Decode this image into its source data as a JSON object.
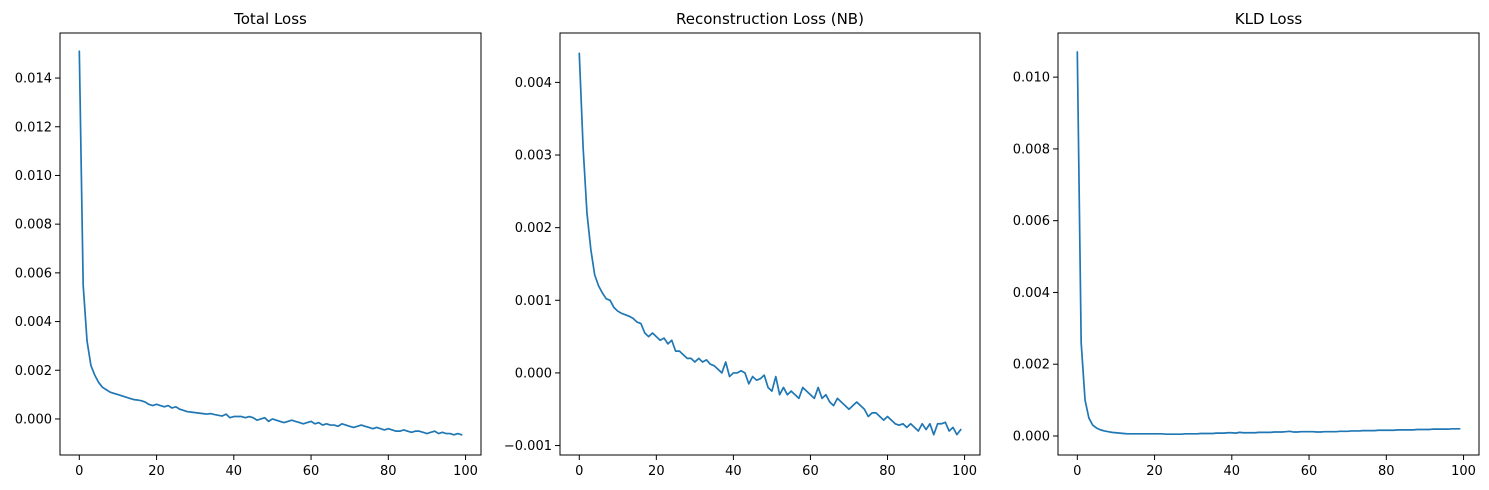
{
  "chart_data": [
    {
      "type": "line",
      "title": "Total Loss",
      "xlabel": "",
      "ylabel": "",
      "xlim": [
        -5,
        104
      ],
      "ylim": [
        -0.00148,
        0.01585
      ],
      "xticks": [
        0,
        20,
        40,
        60,
        80,
        100
      ],
      "xtick_labels": [
        "0",
        "20",
        "40",
        "60",
        "80",
        "100"
      ],
      "yticks": [
        0.0,
        0.002,
        0.004,
        0.006,
        0.008,
        0.01,
        0.012,
        0.014
      ],
      "ytick_labels": [
        "0.000",
        "0.002",
        "0.004",
        "0.006",
        "0.008",
        "0.010",
        "0.012",
        "0.014"
      ],
      "grid": false,
      "legend": "none",
      "series": [
        {
          "color": "#1f77b4",
          "x": [
            0,
            1,
            2,
            3,
            4,
            5,
            6,
            7,
            8,
            9,
            10,
            11,
            12,
            13,
            14,
            15,
            16,
            17,
            18,
            19,
            20,
            21,
            22,
            23,
            24,
            25,
            26,
            27,
            28,
            29,
            30,
            31,
            32,
            33,
            34,
            35,
            36,
            37,
            38,
            39,
            40,
            41,
            42,
            43,
            44,
            45,
            46,
            47,
            48,
            49,
            50,
            51,
            52,
            53,
            54,
            55,
            56,
            57,
            58,
            59,
            60,
            61,
            62,
            63,
            64,
            65,
            66,
            67,
            68,
            69,
            70,
            71,
            72,
            73,
            74,
            75,
            76,
            77,
            78,
            79,
            80,
            81,
            82,
            83,
            84,
            85,
            86,
            87,
            88,
            89,
            90,
            91,
            92,
            93,
            94,
            95,
            96,
            97,
            98,
            99
          ],
          "values": [
            0.0151,
            0.0055,
            0.0032,
            0.0022,
            0.0018,
            0.0015,
            0.0013,
            0.0012,
            0.0011,
            0.00105,
            0.001,
            0.00095,
            0.0009,
            0.00085,
            0.0008,
            0.00078,
            0.00075,
            0.0007,
            0.0006,
            0.00055,
            0.0006,
            0.00055,
            0.0005,
            0.00055,
            0.00045,
            0.0005,
            0.0004,
            0.00035,
            0.0003,
            0.00028,
            0.00026,
            0.00024,
            0.00022,
            0.0002,
            0.00022,
            0.00018,
            0.00015,
            0.00012,
            0.0002,
            5e-05,
            0.0001,
            0.0001,
            0.0001,
            5e-05,
            0.0001,
            5e-05,
            -5e-05,
            0.0,
            5e-05,
            -0.0001,
            0.0,
            -5e-05,
            -0.0001,
            -0.00015,
            -0.0001,
            -5e-05,
            -0.0001,
            -0.00015,
            -0.0002,
            -0.00015,
            -0.0001,
            -0.0002,
            -0.00015,
            -0.00025,
            -0.0002,
            -0.00025,
            -0.00025,
            -0.0003,
            -0.0002,
            -0.00025,
            -0.0003,
            -0.00035,
            -0.0003,
            -0.00025,
            -0.0003,
            -0.00035,
            -0.0004,
            -0.00035,
            -0.0004,
            -0.00045,
            -0.0004,
            -0.00045,
            -0.0005,
            -0.0005,
            -0.00045,
            -0.0005,
            -0.00055,
            -0.0005,
            -0.0005,
            -0.00055,
            -0.0006,
            -0.00055,
            -0.0005,
            -0.0006,
            -0.00055,
            -0.0006,
            -0.0006,
            -0.00065,
            -0.0006,
            -0.00065
          ]
        }
      ]
    },
    {
      "type": "line",
      "title": "Reconstruction Loss (NB)",
      "xlabel": "",
      "ylabel": "",
      "xlim": [
        -5,
        104
      ],
      "ylim": [
        -0.00113,
        0.00468
      ],
      "xticks": [
        0,
        20,
        40,
        60,
        80,
        100
      ],
      "xtick_labels": [
        "0",
        "20",
        "40",
        "60",
        "80",
        "100"
      ],
      "yticks": [
        -0.001,
        0.0,
        0.001,
        0.002,
        0.003,
        0.004
      ],
      "ytick_labels": [
        "−0.001",
        "0.000",
        "0.001",
        "0.002",
        "0.003",
        "0.004"
      ],
      "grid": false,
      "legend": "none",
      "series": [
        {
          "color": "#1f77b4",
          "x": [
            0,
            1,
            2,
            3,
            4,
            5,
            6,
            7,
            8,
            9,
            10,
            11,
            12,
            13,
            14,
            15,
            16,
            17,
            18,
            19,
            20,
            21,
            22,
            23,
            24,
            25,
            26,
            27,
            28,
            29,
            30,
            31,
            32,
            33,
            34,
            35,
            36,
            37,
            38,
            39,
            40,
            41,
            42,
            43,
            44,
            45,
            46,
            47,
            48,
            49,
            50,
            51,
            52,
            53,
            54,
            55,
            56,
            57,
            58,
            59,
            60,
            61,
            62,
            63,
            64,
            65,
            66,
            67,
            68,
            69,
            70,
            71,
            72,
            73,
            74,
            75,
            76,
            77,
            78,
            79,
            80,
            81,
            82,
            83,
            84,
            85,
            86,
            87,
            88,
            89,
            90,
            91,
            92,
            93,
            94,
            95,
            96,
            97,
            98,
            99
          ],
          "values": [
            0.0044,
            0.0031,
            0.0022,
            0.0017,
            0.00135,
            0.0012,
            0.0011,
            0.00102,
            0.001,
            0.0009,
            0.00085,
            0.00082,
            0.0008,
            0.00078,
            0.00075,
            0.0007,
            0.00068,
            0.00055,
            0.0005,
            0.00055,
            0.0005,
            0.00045,
            0.00048,
            0.0004,
            0.00045,
            0.0003,
            0.0003,
            0.00025,
            0.0002,
            0.0002,
            0.00015,
            0.0002,
            0.00015,
            0.00018,
            0.00012,
            0.0001,
            5e-05,
            0.0,
            0.00015,
            -5e-05,
            0.0,
            0.0,
            3e-05,
            0.0,
            -0.00015,
            -5e-05,
            -0.0001,
            -8e-05,
            -3e-05,
            -0.0002,
            -0.00025,
            -5e-05,
            -0.0003,
            -0.0002,
            -0.0003,
            -0.00025,
            -0.0003,
            -0.00035,
            -0.0002,
            -0.00025,
            -0.0003,
            -0.00035,
            -0.0002,
            -0.00035,
            -0.0003,
            -0.0004,
            -0.00045,
            -0.00035,
            -0.0004,
            -0.00045,
            -0.0005,
            -0.00045,
            -0.0004,
            -0.00045,
            -0.0005,
            -0.0006,
            -0.00055,
            -0.00055,
            -0.0006,
            -0.00065,
            -0.0006,
            -0.00065,
            -0.0007,
            -0.00072,
            -0.0007,
            -0.00075,
            -0.0007,
            -0.00075,
            -0.0008,
            -0.0007,
            -0.00078,
            -0.0007,
            -0.00085,
            -0.0007,
            -0.0007,
            -0.00068,
            -0.0008,
            -0.00075,
            -0.00085,
            -0.00078
          ]
        }
      ]
    },
    {
      "type": "line",
      "title": "KLD Loss",
      "xlabel": "",
      "ylabel": "",
      "xlim": [
        -5,
        104
      ],
      "ylim": [
        -0.00053,
        0.01123
      ],
      "xticks": [
        0,
        20,
        40,
        60,
        80,
        100
      ],
      "xtick_labels": [
        "0",
        "20",
        "40",
        "60",
        "80",
        "100"
      ],
      "yticks": [
        0.0,
        0.002,
        0.004,
        0.006,
        0.008,
        0.01
      ],
      "ytick_labels": [
        "0.000",
        "0.002",
        "0.004",
        "0.006",
        "0.008",
        "0.010"
      ],
      "grid": false,
      "legend": "none",
      "series": [
        {
          "color": "#1f77b4",
          "x": [
            0,
            1,
            2,
            3,
            4,
            5,
            6,
            7,
            8,
            9,
            10,
            11,
            12,
            13,
            14,
            15,
            16,
            17,
            18,
            19,
            20,
            21,
            22,
            23,
            24,
            25,
            26,
            27,
            28,
            29,
            30,
            31,
            32,
            33,
            34,
            35,
            36,
            37,
            38,
            39,
            40,
            41,
            42,
            43,
            44,
            45,
            46,
            47,
            48,
            49,
            50,
            51,
            52,
            53,
            54,
            55,
            56,
            57,
            58,
            59,
            60,
            61,
            62,
            63,
            64,
            65,
            66,
            67,
            68,
            69,
            70,
            71,
            72,
            73,
            74,
            75,
            76,
            77,
            78,
            79,
            80,
            81,
            82,
            83,
            84,
            85,
            86,
            87,
            88,
            89,
            90,
            91,
            92,
            93,
            94,
            95,
            96,
            97,
            98,
            99
          ],
          "values": [
            0.0107,
            0.0026,
            0.001,
            0.0005,
            0.0003,
            0.00022,
            0.00017,
            0.00014,
            0.00012,
            0.0001,
            9e-05,
            8e-05,
            7e-05,
            6e-05,
            6e-05,
            6e-05,
            6e-05,
            6e-05,
            6e-05,
            6e-05,
            6e-05,
            6e-05,
            6e-05,
            5e-05,
            5e-05,
            5e-05,
            5e-05,
            5e-05,
            6e-05,
            6e-05,
            6e-05,
            6e-05,
            7e-05,
            7e-05,
            7e-05,
            7e-05,
            8e-05,
            8e-05,
            8e-05,
            9e-05,
            9e-05,
            8e-05,
            0.0001,
            9e-05,
            9e-05,
            9e-05,
            9e-05,
            0.0001,
            0.0001,
            0.0001,
            0.0001,
            0.00011,
            0.00011,
            0.00011,
            0.00012,
            0.00013,
            0.00011,
            0.00011,
            0.00012,
            0.00012,
            0.00012,
            0.00012,
            0.00011,
            0.00011,
            0.00012,
            0.00012,
            0.00012,
            0.00012,
            0.00013,
            0.00013,
            0.00013,
            0.00014,
            0.00014,
            0.00014,
            0.00015,
            0.00015,
            0.00015,
            0.00015,
            0.00016,
            0.00016,
            0.00016,
            0.00016,
            0.00016,
            0.00017,
            0.00017,
            0.00017,
            0.00017,
            0.00017,
            0.00018,
            0.00018,
            0.00018,
            0.00018,
            0.00019,
            0.00019,
            0.00019,
            0.00019,
            0.00019,
            0.0002,
            0.0002,
            0.0002
          ]
        }
      ]
    }
  ]
}
